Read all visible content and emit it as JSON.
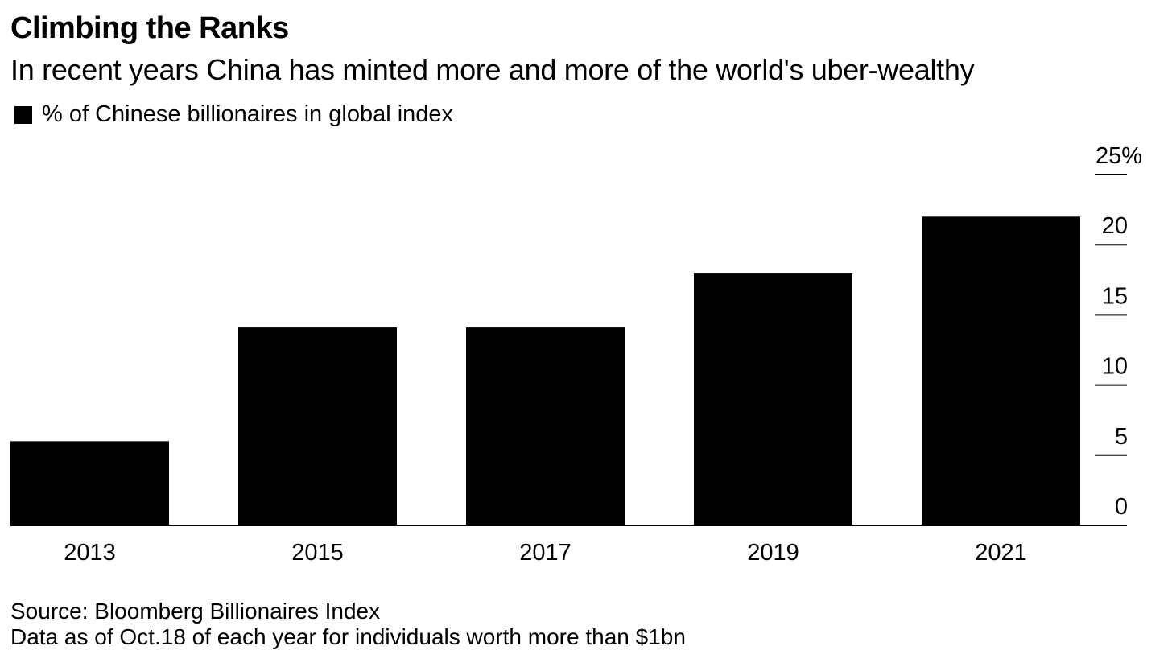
{
  "header": {
    "title": "Climbing the Ranks",
    "subtitle": "In recent years China has minted more and more of the world's uber-wealthy"
  },
  "footer": {
    "source": "Source: Bloomberg Billionaires Index",
    "note": "Data as of Oct.18 of each year for individuals worth more than $1bn"
  },
  "chart_data": {
    "type": "bar",
    "title": "Climbing the Ranks",
    "subtitle": "In recent years China has minted more and more of the world's uber-wealthy",
    "categories": [
      "2013",
      "2015",
      "2017",
      "2019",
      "2021"
    ],
    "series": [
      {
        "name": "% of Chinese billionaires in global index",
        "values": [
          6.0,
          14.1,
          14.1,
          18.0,
          22.0
        ],
        "color": "#000000"
      }
    ],
    "ylim": [
      0,
      25
    ],
    "yticks": [
      0,
      5,
      10,
      15,
      20,
      25
    ],
    "ytick_labels": [
      "0",
      "5",
      "10",
      "15",
      "20",
      "25%"
    ],
    "yaxis_position": "right",
    "grid": false,
    "legend_position": "top-left"
  }
}
